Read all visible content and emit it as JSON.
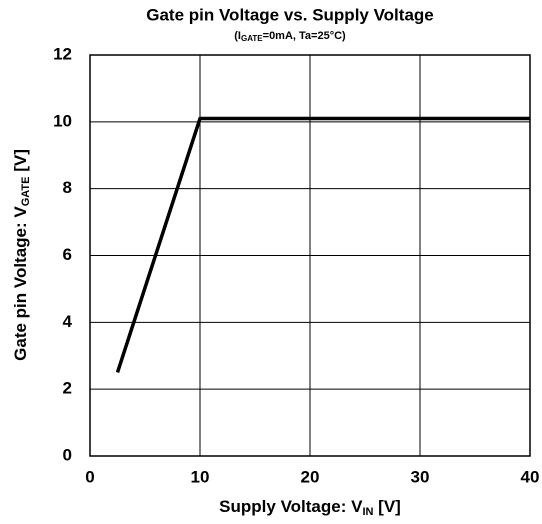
{
  "chart_data": {
    "type": "line",
    "title": "Gate pin Voltage vs. Supply Voltage",
    "subtitle": [
      "(I",
      "GATE",
      "=0mA, Ta=25°C)"
    ],
    "xlabel": [
      "Supply Voltage: V",
      "IN",
      " [V]"
    ],
    "ylabel": [
      "Gate pin Voltage: V",
      "GATE",
      " [V]"
    ],
    "x": [
      2.5,
      10,
      40
    ],
    "series": [
      {
        "name": "VGATE",
        "color": "#000000",
        "values": [
          2.5,
          10.1,
          10.1
        ]
      }
    ],
    "xlim": [
      0,
      40
    ],
    "xticks": [
      0,
      10,
      20,
      30,
      40
    ],
    "ylim": [
      0,
      12
    ],
    "yticks": [
      0,
      2,
      4,
      6,
      8,
      10,
      12
    ],
    "grid": true
  }
}
